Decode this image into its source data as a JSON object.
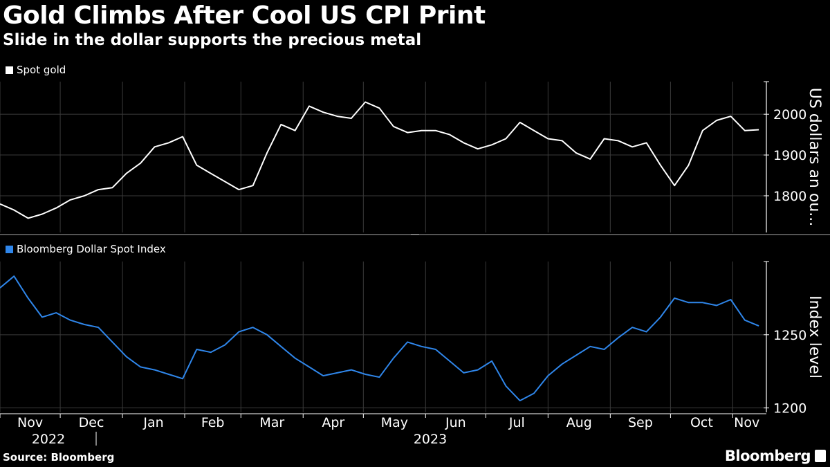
{
  "header": {
    "title": "Gold Climbs After Cool US CPI Print",
    "subtitle": "Slide in the dollar supports the precious metal"
  },
  "footer": {
    "source": "Source: Bloomberg",
    "brand": "Bloomberg"
  },
  "colors": {
    "gold": "#ffffff",
    "dollar": "#2f86ea",
    "background": "#000000",
    "grid": "#3a3a3a"
  },
  "chart_data": [
    {
      "type": "line",
      "title": "",
      "legend": "top-left",
      "series": [
        {
          "name": "Spot gold",
          "x": [
            "2022-11-01",
            "2022-11-08",
            "2022-11-15",
            "2022-11-22",
            "2022-11-29",
            "2022-12-06",
            "2022-12-13",
            "2022-12-20",
            "2022-12-27",
            "2023-01-03",
            "2023-01-10",
            "2023-01-17",
            "2023-01-24",
            "2023-01-31",
            "2023-02-07",
            "2023-02-14",
            "2023-02-21",
            "2023-02-28",
            "2023-03-07",
            "2023-03-14",
            "2023-03-21",
            "2023-03-28",
            "2023-04-04",
            "2023-04-11",
            "2023-04-18",
            "2023-04-25",
            "2023-05-02",
            "2023-05-09",
            "2023-05-16",
            "2023-05-23",
            "2023-05-30",
            "2023-06-06",
            "2023-06-13",
            "2023-06-20",
            "2023-06-27",
            "2023-07-04",
            "2023-07-11",
            "2023-07-18",
            "2023-07-25",
            "2023-08-01",
            "2023-08-08",
            "2023-08-15",
            "2023-08-22",
            "2023-08-29",
            "2023-09-05",
            "2023-09-12",
            "2023-09-19",
            "2023-09-26",
            "2023-10-03",
            "2023-10-10",
            "2023-10-17",
            "2023-10-24",
            "2023-10-31",
            "2023-11-07",
            "2023-11-14"
          ],
          "values": [
            1780,
            1765,
            1745,
            1755,
            1770,
            1790,
            1800,
            1815,
            1820,
            1855,
            1880,
            1920,
            1930,
            1945,
            1875,
            1855,
            1835,
            1815,
            1825,
            1905,
            1975,
            1960,
            2020,
            2005,
            1995,
            1990,
            2030,
            2015,
            1970,
            1955,
            1960,
            1960,
            1950,
            1930,
            1915,
            1925,
            1940,
            1980,
            1960,
            1940,
            1935,
            1905,
            1890,
            1940,
            1935,
            1920,
            1930,
            1875,
            1825,
            1875,
            1960,
            1985,
            1995,
            1960,
            1962
          ]
        }
      ],
      "xlabel": "",
      "ylabel": "US dollars an ou...",
      "ylim": [
        1710,
        2080
      ],
      "yticks": [
        1800,
        1900,
        2000
      ],
      "grid": true
    },
    {
      "type": "line",
      "title": "",
      "legend": "top-left",
      "series": [
        {
          "name": "Bloomberg Dollar Spot Index",
          "x": [
            "2022-11-01",
            "2022-11-08",
            "2022-11-15",
            "2022-11-22",
            "2022-11-29",
            "2022-12-06",
            "2022-12-13",
            "2022-12-20",
            "2022-12-27",
            "2023-01-03",
            "2023-01-10",
            "2023-01-17",
            "2023-01-24",
            "2023-01-31",
            "2023-02-07",
            "2023-02-14",
            "2023-02-21",
            "2023-02-28",
            "2023-03-07",
            "2023-03-14",
            "2023-03-21",
            "2023-03-28",
            "2023-04-04",
            "2023-04-11",
            "2023-04-18",
            "2023-04-25",
            "2023-05-02",
            "2023-05-09",
            "2023-05-16",
            "2023-05-23",
            "2023-05-30",
            "2023-06-06",
            "2023-06-13",
            "2023-06-20",
            "2023-06-27",
            "2023-07-04",
            "2023-07-11",
            "2023-07-18",
            "2023-07-25",
            "2023-08-01",
            "2023-08-08",
            "2023-08-15",
            "2023-08-22",
            "2023-08-29",
            "2023-09-05",
            "2023-09-12",
            "2023-09-19",
            "2023-09-26",
            "2023-10-03",
            "2023-10-10",
            "2023-10-17",
            "2023-10-24",
            "2023-10-31",
            "2023-11-07",
            "2023-11-14"
          ],
          "values": [
            1282,
            1290,
            1275,
            1262,
            1265,
            1260,
            1257,
            1255,
            1245,
            1235,
            1228,
            1226,
            1223,
            1220,
            1240,
            1238,
            1243,
            1252,
            1255,
            1250,
            1242,
            1234,
            1228,
            1222,
            1224,
            1226,
            1223,
            1221,
            1234,
            1245,
            1242,
            1240,
            1232,
            1224,
            1226,
            1232,
            1215,
            1205,
            1210,
            1222,
            1230,
            1236,
            1242,
            1240,
            1248,
            1255,
            1252,
            1262,
            1275,
            1272,
            1272,
            1270,
            1274,
            1260,
            1256
          ]
        }
      ],
      "xlabel": "",
      "ylabel": "Index level",
      "ylim": [
        1197,
        1300
      ],
      "yticks": [
        1200,
        1250
      ],
      "grid": true
    }
  ],
  "x_axis": {
    "months": [
      "Nov",
      "Dec",
      "Jan",
      "Feb",
      "Mar",
      "Apr",
      "May",
      "Jun",
      "Jul",
      "Aug",
      "Sep",
      "Oct",
      "Nov"
    ],
    "month_dates": [
      "2022-11-01",
      "2022-12-01",
      "2023-01-01",
      "2023-02-01",
      "2023-03-01",
      "2023-04-01",
      "2023-05-01",
      "2023-06-01",
      "2023-07-01",
      "2023-08-01",
      "2023-09-01",
      "2023-10-01",
      "2023-11-01"
    ],
    "years": [
      {
        "label": "2022",
        "at": "2022-12-01"
      },
      {
        "label": "2023",
        "at": "2023-06-15"
      }
    ],
    "range": [
      "2022-11-01",
      "2023-11-15"
    ]
  }
}
